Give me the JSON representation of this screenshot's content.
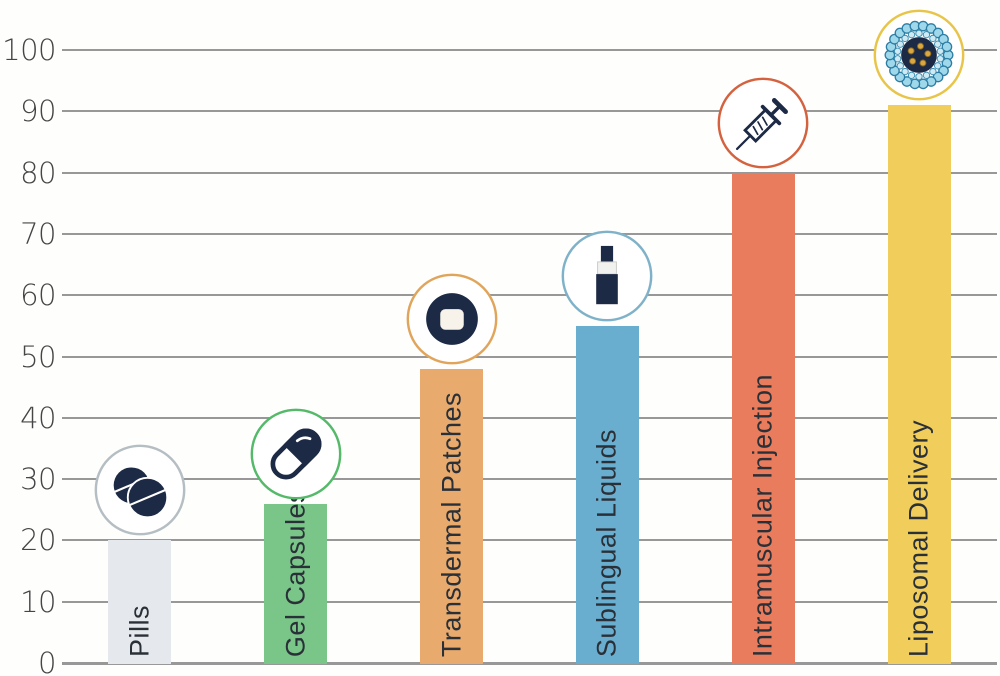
{
  "chart_data": {
    "type": "bar",
    "title": "",
    "xlabel": "",
    "ylabel": "",
    "categories": [
      "Pills",
      "Gel Capsules",
      "Transdermal Patches",
      "Sublingual Liquids",
      "Intramuscular Injection",
      "Liposomal Delivery"
    ],
    "values": [
      20,
      26,
      48,
      55,
      80,
      91
    ],
    "ylim": [
      0,
      100
    ],
    "y_ticks": [
      0,
      10,
      20,
      30,
      40,
      50,
      60,
      70,
      80,
      90,
      100
    ],
    "grid": true,
    "legend": false,
    "bars": [
      {
        "label": "Pills",
        "value": 20,
        "color": "#e5e9ed",
        "ring_color": "#b5bec3",
        "icon": "pills-icon"
      },
      {
        "label": "Gel Capsules",
        "value": 26,
        "color": "#7ac588",
        "ring_color": "#55b96a",
        "icon": "capsule-icon"
      },
      {
        "label": "Transdermal Patches",
        "value": 48,
        "color": "#e8aa6d",
        "ring_color": "#e0a55b",
        "icon": "patch-icon"
      },
      {
        "label": "Sublingual Liquids",
        "value": 55,
        "color": "#69adcf",
        "ring_color": "#7fb2c9",
        "icon": "spray-bottle-icon"
      },
      {
        "label": "Intramuscular Injection",
        "value": 80,
        "color": "#e97c5c",
        "ring_color": "#d4623f",
        "icon": "syringe-icon"
      },
      {
        "label": "Liposomal Delivery",
        "value": 91,
        "color": "#f1ce5c",
        "ring_color": "#e8c449",
        "icon": "liposome-icon"
      }
    ],
    "icon_ink_color": "#1d2a45",
    "grid_color": "#989898",
    "axis_text_color": "#454545",
    "label_text_color": "#2a3038",
    "background_color": "#fefefd"
  }
}
